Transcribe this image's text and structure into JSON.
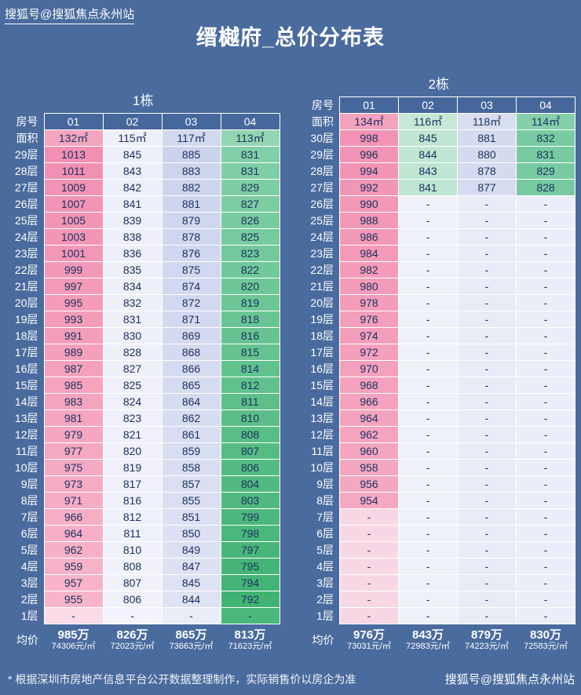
{
  "page": {
    "watermark_top": "搜狐号@搜狐焦点永州站",
    "watermark_bottom": "搜狐号@搜狐焦点永州站",
    "footnote": "* 根据深圳市房地产信息平台公开数据整理制作，实际销售价以房企为准"
  },
  "chart_data": {
    "type": "table",
    "title": "缙樾府_总价分布表",
    "tables": [
      {
        "name": "1栋",
        "row_header_label": "房号",
        "area_row_label": "面积",
        "avg_row_label": "均价",
        "columns": [
          "01",
          "02",
          "03",
          "04"
        ],
        "areas": [
          "132㎡",
          "115㎡",
          "117㎡",
          "113㎡"
        ],
        "floors": [
          "29层",
          "28层",
          "27层",
          "26层",
          "25层",
          "24层",
          "23层",
          "22层",
          "21层",
          "20层",
          "19层",
          "18层",
          "17层",
          "16层",
          "15层",
          "14层",
          "13层",
          "12层",
          "11层",
          "10层",
          "9层",
          "8层",
          "7层",
          "6层",
          "5层",
          "4层",
          "3层",
          "2层",
          "1层"
        ],
        "values": [
          [
            "1013",
            "845",
            "885",
            "831"
          ],
          [
            "1011",
            "843",
            "883",
            "831"
          ],
          [
            "1009",
            "842",
            "882",
            "829"
          ],
          [
            "1007",
            "841",
            "881",
            "827"
          ],
          [
            "1005",
            "839",
            "879",
            "826"
          ],
          [
            "1003",
            "838",
            "878",
            "825"
          ],
          [
            "1001",
            "836",
            "876",
            "823"
          ],
          [
            "999",
            "835",
            "875",
            "822"
          ],
          [
            "997",
            "834",
            "874",
            "820"
          ],
          [
            "995",
            "832",
            "872",
            "819"
          ],
          [
            "993",
            "831",
            "871",
            "818"
          ],
          [
            "991",
            "830",
            "869",
            "816"
          ],
          [
            "989",
            "828",
            "868",
            "815"
          ],
          [
            "987",
            "827",
            "866",
            "814"
          ],
          [
            "985",
            "825",
            "865",
            "812"
          ],
          [
            "983",
            "824",
            "864",
            "811"
          ],
          [
            "981",
            "823",
            "862",
            "810"
          ],
          [
            "979",
            "821",
            "861",
            "808"
          ],
          [
            "977",
            "820",
            "859",
            "807"
          ],
          [
            "975",
            "819",
            "858",
            "806"
          ],
          [
            "973",
            "817",
            "857",
            "804"
          ],
          [
            "971",
            "816",
            "855",
            "803"
          ],
          [
            "966",
            "812",
            "851",
            "799"
          ],
          [
            "964",
            "811",
            "850",
            "798"
          ],
          [
            "962",
            "810",
            "849",
            "797"
          ],
          [
            "959",
            "808",
            "847",
            "795"
          ],
          [
            "957",
            "807",
            "845",
            "794"
          ],
          [
            "955",
            "806",
            "844",
            "792"
          ],
          [
            "-",
            "-",
            "-",
            "-"
          ]
        ],
        "avg_prices": [
          "985万",
          "826万",
          "865万",
          "813万"
        ],
        "avg_units": [
          "74306元/㎡",
          "72023元/㎡",
          "73663元/㎡",
          "71623元/㎡"
        ]
      },
      {
        "name": "2栋",
        "row_header_label": "房号",
        "area_row_label": "面积",
        "avg_row_label": "均价",
        "columns": [
          "01",
          "02",
          "03",
          "04"
        ],
        "areas": [
          "134㎡",
          "116㎡",
          "118㎡",
          "114㎡"
        ],
        "floors": [
          "30层",
          "29层",
          "28层",
          "27层",
          "26层",
          "25层",
          "24层",
          "23层",
          "22层",
          "21层",
          "20层",
          "19层",
          "18层",
          "17层",
          "16层",
          "15层",
          "14层",
          "13层",
          "12层",
          "11层",
          "10层",
          "9层",
          "8层",
          "7层",
          "6层",
          "5层",
          "4层",
          "3层",
          "2层",
          "1层"
        ],
        "values": [
          [
            "998",
            "845",
            "881",
            "832"
          ],
          [
            "996",
            "844",
            "880",
            "831"
          ],
          [
            "994",
            "843",
            "878",
            "829"
          ],
          [
            "992",
            "841",
            "877",
            "828"
          ],
          [
            "990",
            "-",
            "-",
            "-"
          ],
          [
            "988",
            "-",
            "-",
            "-"
          ],
          [
            "986",
            "-",
            "-",
            "-"
          ],
          [
            "984",
            "-",
            "-",
            "-"
          ],
          [
            "982",
            "-",
            "-",
            "-"
          ],
          [
            "980",
            "-",
            "-",
            "-"
          ],
          [
            "978",
            "-",
            "-",
            "-"
          ],
          [
            "976",
            "-",
            "-",
            "-"
          ],
          [
            "974",
            "-",
            "-",
            "-"
          ],
          [
            "972",
            "-",
            "-",
            "-"
          ],
          [
            "970",
            "-",
            "-",
            "-"
          ],
          [
            "968",
            "-",
            "-",
            "-"
          ],
          [
            "966",
            "-",
            "-",
            "-"
          ],
          [
            "964",
            "-",
            "-",
            "-"
          ],
          [
            "962",
            "-",
            "-",
            "-"
          ],
          [
            "960",
            "-",
            "-",
            "-"
          ],
          [
            "958",
            "-",
            "-",
            "-"
          ],
          [
            "956",
            "-",
            "-",
            "-"
          ],
          [
            "954",
            "-",
            "-",
            "-"
          ],
          [
            "-",
            "-",
            "-",
            "-"
          ],
          [
            "-",
            "-",
            "-",
            "-"
          ],
          [
            "-",
            "-",
            "-",
            "-"
          ],
          [
            "-",
            "-",
            "-",
            "-"
          ],
          [
            "-",
            "-",
            "-",
            "-"
          ],
          [
            "-",
            "-",
            "-",
            "-"
          ],
          [
            "-",
            "-",
            "-",
            "-"
          ]
        ],
        "avg_prices": [
          "976万",
          "843万",
          "879万",
          "830万"
        ],
        "avg_units": [
          "73031元/㎡",
          "72983元/㎡",
          "74223元/㎡",
          "72583元/㎡"
        ]
      }
    ]
  },
  "colors": {
    "background": "#4a6b9e",
    "header_cell": "#46679b",
    "cell_text": "#1c3260",
    "grid_line": "#ffffff",
    "tables": [
      {
        "area_cells": [
          "#f4a5c0",
          "#eef0f8",
          "#d2d8ee",
          "#93d5b2"
        ],
        "columns": [
          {
            "top": "#f28fb2",
            "bottom": "#f7b6ca",
            "empty": "#fadbe7"
          },
          {
            "top": "#edeff8",
            "bottom": "#f0f1f9",
            "empty": "#f3f4fb"
          },
          {
            "top": "#ccd4ed",
            "bottom": "#dfe3f3",
            "empty": "#eaedf8"
          },
          {
            "top": "#82cfa7",
            "bottom": "#3eb271",
            "empty": "#49b87a"
          }
        ]
      },
      {
        "area_cells": [
          "#f4a2be",
          "#c6e8d6",
          "#d8def0",
          "#85cfab"
        ],
        "columns": [
          {
            "top": "#f293b4",
            "bottom": "#f5afc5",
            "empty": "#f8d7e4"
          },
          {
            "top": "#bfe6d2",
            "bottom": "#b2e0c9",
            "empty": "#eff1f9"
          },
          {
            "top": "#d5dbef",
            "bottom": "#dadff1",
            "empty": "#e9ecf7"
          },
          {
            "top": "#79cba1",
            "bottom": "#6ac496",
            "empty": "#ebeef8"
          }
        ]
      }
    ]
  }
}
